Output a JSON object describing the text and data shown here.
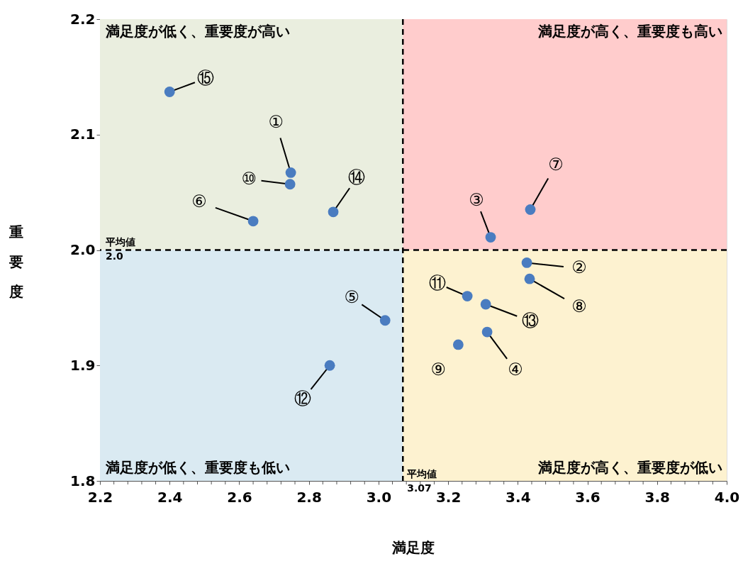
{
  "chart_data": {
    "type": "scatter",
    "xlabel": "満足度",
    "ylabel": "重要度",
    "x": [
      2.748,
      3.426,
      3.322,
      3.312,
      3.019,
      2.64,
      3.436,
      3.434,
      3.229,
      2.746,
      3.255,
      2.86,
      3.308,
      2.87,
      2.4
    ],
    "series": [
      {
        "color": "#4a7cc0",
        "values": [
          2.067,
          1.989,
          2.011,
          1.929,
          1.939,
          2.025,
          2.035,
          1.975,
          1.918,
          2.057,
          1.96,
          1.9,
          1.953,
          2.033,
          2.137
        ]
      }
    ],
    "marker": "circle",
    "grid": false,
    "xlim": [
      2.2,
      4.0
    ],
    "ylim": [
      1.8,
      2.2
    ],
    "xticks": [
      2.2,
      {
        "value": 2.24,
        "label": null
      },
      {
        "value": 2.28,
        "label": null
      },
      {
        "value": 2.32,
        "label": null
      },
      {
        "value": 2.36,
        "label": null
      },
      2.4,
      {
        "value": 2.44,
        "label": null
      },
      {
        "value": 2.48,
        "label": null
      },
      {
        "value": 2.52,
        "label": null
      },
      {
        "value": 2.56,
        "label": null
      },
      2.6,
      {
        "value": 2.64,
        "label": null
      },
      {
        "value": 2.68,
        "label": null
      },
      {
        "value": 2.72,
        "label": null
      },
      {
        "value": 2.76,
        "label": null
      },
      2.8,
      {
        "value": 2.84,
        "label": null
      },
      {
        "value": 2.88,
        "label": null
      },
      {
        "value": 2.92,
        "label": null
      },
      {
        "value": 2.96,
        "label": null
      },
      {
        "value": 3,
        "label": "3.0"
      },
      {
        "value": 3.04,
        "label": null
      },
      {
        "value": 3.08,
        "label": null
      },
      {
        "value": 3.12,
        "label": null
      },
      {
        "value": 3.16,
        "label": null
      },
      3.2,
      {
        "value": 3.24,
        "label": null
      },
      {
        "value": 3.28,
        "label": null
      },
      {
        "value": 3.32,
        "label": null
      },
      {
        "value": 3.36,
        "label": null
      },
      3.4,
      {
        "value": 3.44,
        "label": null
      },
      {
        "value": 3.48,
        "label": null
      },
      {
        "value": 3.52,
        "label": null
      },
      {
        "value": 3.56,
        "label": null
      },
      3.6,
      {
        "value": 3.64,
        "label": null
      },
      {
        "value": 3.68,
        "label": null
      },
      {
        "value": 3.72,
        "label": null
      },
      {
        "value": 3.76,
        "label": null
      },
      3.8,
      {
        "value": 3.84,
        "label": null
      },
      {
        "value": 3.88,
        "label": null
      },
      {
        "value": 3.92,
        "label": null
      },
      {
        "value": 3.96,
        "label": null
      },
      {
        "value": 4,
        "label": "4.0"
      }
    ],
    "yticks": [
      1.8,
      1.9,
      {
        "value": 2,
        "label": "2.0"
      },
      2.1,
      2.2
    ],
    "ref_lines": [
      {
        "axis": "y",
        "value": 2.0,
        "label": "平均値\n2.0",
        "line_style": "dashed",
        "color": "#000000"
      },
      {
        "axis": "x",
        "value": 3.07,
        "label": "平均値\n3.07",
        "line_style": "dashed",
        "color": "#000000"
      }
    ],
    "bands": [
      {
        "axis": "x",
        "from": 2.2,
        "to": 3.07,
        "label": "満足度が低く、重要度が高い",
        "color": "#eaeedf"
      },
      {
        "axis": "x",
        "from": 3.07,
        "to": 4.0,
        "label": "満足度が高く、重要度も高い",
        "color": "#ffcccc"
      },
      {
        "axis": "x",
        "from": 2.2,
        "to": 3.07,
        "label": "満足度が低く、重要度も低い",
        "color": "#daeaf2"
      },
      {
        "axis": "x",
        "from": 3.07,
        "to": 4.0,
        "label": "満足度が高く、重要度が低い",
        "color": "#fdf2d0"
      }
    ],
    "annotations": [
      {
        "text": "①",
        "x": 2.748,
        "y": 2.067
      },
      {
        "text": "②",
        "x": 3.426,
        "y": 1.989
      },
      {
        "text": "③",
        "x": 3.322,
        "y": 2.011
      },
      {
        "text": "④",
        "x": 3.312,
        "y": 1.929
      },
      {
        "text": "⑤",
        "x": 3.019,
        "y": 1.939
      },
      {
        "text": "⑥",
        "x": 2.64,
        "y": 2.025
      },
      {
        "text": "⑦",
        "x": 3.436,
        "y": 2.035
      },
      {
        "text": "⑧",
        "x": 3.434,
        "y": 1.975
      },
      {
        "text": "⑨",
        "x": 3.229,
        "y": 1.918
      },
      {
        "text": "⑩",
        "x": 2.746,
        "y": 2.057
      },
      {
        "text": "⑪",
        "x": 3.255,
        "y": 1.96
      },
      {
        "text": "⑫",
        "x": 2.86,
        "y": 1.9
      },
      {
        "text": "⑬",
        "x": 3.308,
        "y": 1.953
      },
      {
        "text": "⑭",
        "x": 2.87,
        "y": 2.033
      },
      {
        "text": "⑮",
        "x": 2.4,
        "y": 2.137
      }
    ]
  }
}
